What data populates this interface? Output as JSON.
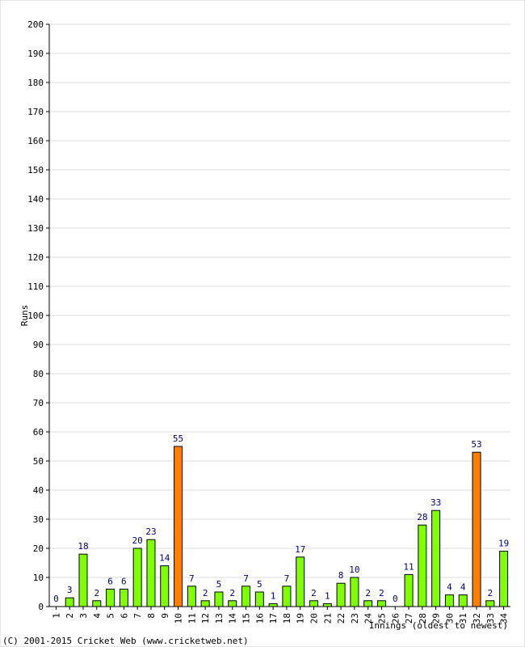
{
  "chart_data": {
    "type": "bar",
    "title": "",
    "xlabel": "Innings (oldest to newest)",
    "ylabel": "Runs",
    "ylim": [
      0,
      200
    ],
    "ytick_step": 10,
    "grid": true,
    "categories": [
      "1",
      "2",
      "3",
      "4",
      "5",
      "6",
      "7",
      "8",
      "9",
      "10",
      "11",
      "12",
      "13",
      "14",
      "15",
      "16",
      "17",
      "18",
      "19",
      "20",
      "21",
      "22",
      "23",
      "24",
      "25",
      "26",
      "27",
      "28",
      "29",
      "30",
      "31",
      "32",
      "33",
      "34"
    ],
    "values": [
      0,
      3,
      18,
      2,
      6,
      6,
      20,
      23,
      14,
      55,
      7,
      2,
      5,
      2,
      7,
      5,
      1,
      7,
      17,
      2,
      1,
      8,
      10,
      2,
      2,
      0,
      11,
      28,
      33,
      4,
      4,
      53,
      2,
      19
    ],
    "highlight": [
      10,
      32
    ],
    "colors": {
      "bar": "#80ff00",
      "highlight": "#ff8000",
      "bar_outline": "#000000",
      "label": "#000080",
      "grid": "#dddddd"
    }
  },
  "footer": {
    "copyright": "(C) 2001-2015 Cricket Web (www.cricketweb.net)"
  }
}
